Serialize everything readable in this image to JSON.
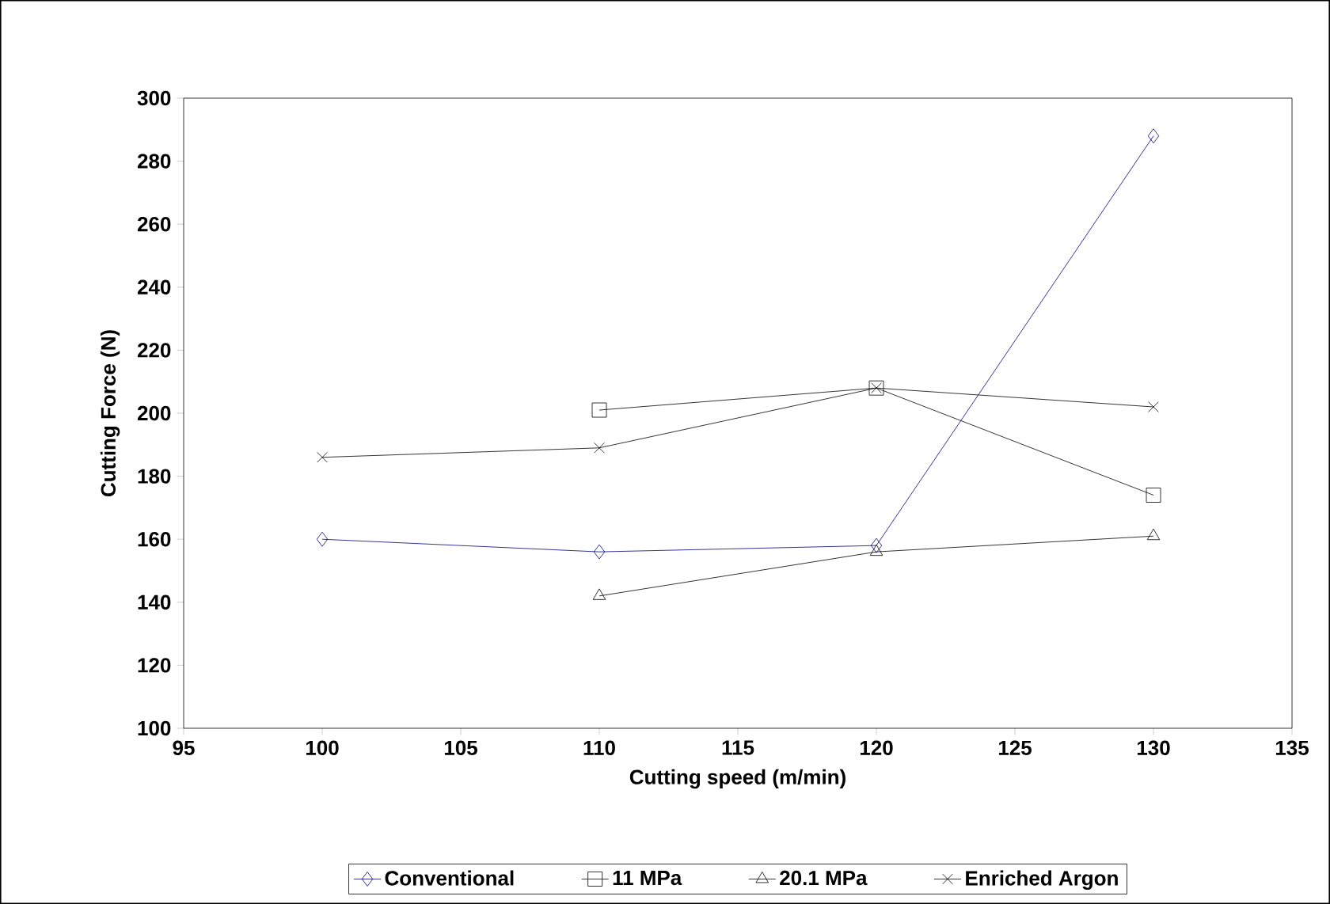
{
  "chart_data": {
    "type": "line",
    "xlabel": "Cutting speed (m/min)",
    "ylabel": "Cutting Force (N)",
    "xlim": [
      95,
      135
    ],
    "xticks": [
      95,
      100,
      105,
      110,
      115,
      120,
      125,
      130,
      135
    ],
    "ylim": [
      100,
      300
    ],
    "yticks": [
      100,
      120,
      140,
      160,
      180,
      200,
      220,
      240,
      260,
      280,
      300
    ],
    "grid": false,
    "legend": "bottom",
    "series": [
      {
        "name": "Conventional",
        "color": "#000080",
        "marker": "diamond",
        "x": [
          100,
          110,
          120,
          130
        ],
        "values": [
          160,
          156,
          158,
          288
        ]
      },
      {
        "name": "11 MPa",
        "color": "#000000",
        "marker": "square",
        "x": [
          110,
          120,
          130
        ],
        "values": [
          201,
          208,
          174
        ]
      },
      {
        "name": "20.1 MPa",
        "color": "#000000",
        "marker": "triangle",
        "x": [
          110,
          120,
          130
        ],
        "values": [
          142,
          156,
          161
        ]
      },
      {
        "name": "Enriched Argon",
        "color": "#000000",
        "marker": "cross",
        "x": [
          100,
          110,
          120,
          130
        ],
        "values": [
          186,
          189,
          208,
          202
        ]
      }
    ]
  }
}
